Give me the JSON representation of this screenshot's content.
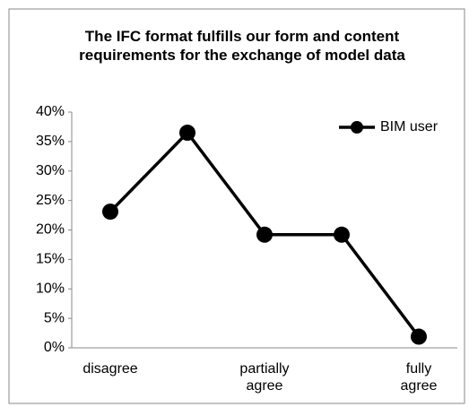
{
  "chart_data": {
    "type": "line",
    "title": "The IFC format fulfills our form and content requirements for the exchange of model data",
    "categories": [
      "disagree",
      null,
      "partially agree",
      null,
      "fully agree"
    ],
    "series": [
      {
        "name": "BIM user",
        "color": "#000000",
        "values": [
          23.1,
          36.5,
          19.2,
          19.2,
          1.9
        ]
      }
    ],
    "ylim": [
      0,
      40
    ],
    "yticks": [
      {
        "value": 0,
        "label": "0%"
      },
      {
        "value": 5,
        "label": "5%"
      },
      {
        "value": 10,
        "label": "10%"
      },
      {
        "value": 15,
        "label": "15%"
      },
      {
        "value": 20,
        "label": "20%"
      },
      {
        "value": 25,
        "label": "25%"
      },
      {
        "value": 30,
        "label": "30%"
      },
      {
        "value": 35,
        "label": "35%"
      },
      {
        "value": 40,
        "label": "40%"
      }
    ],
    "grid": false,
    "legend": "top-right"
  }
}
